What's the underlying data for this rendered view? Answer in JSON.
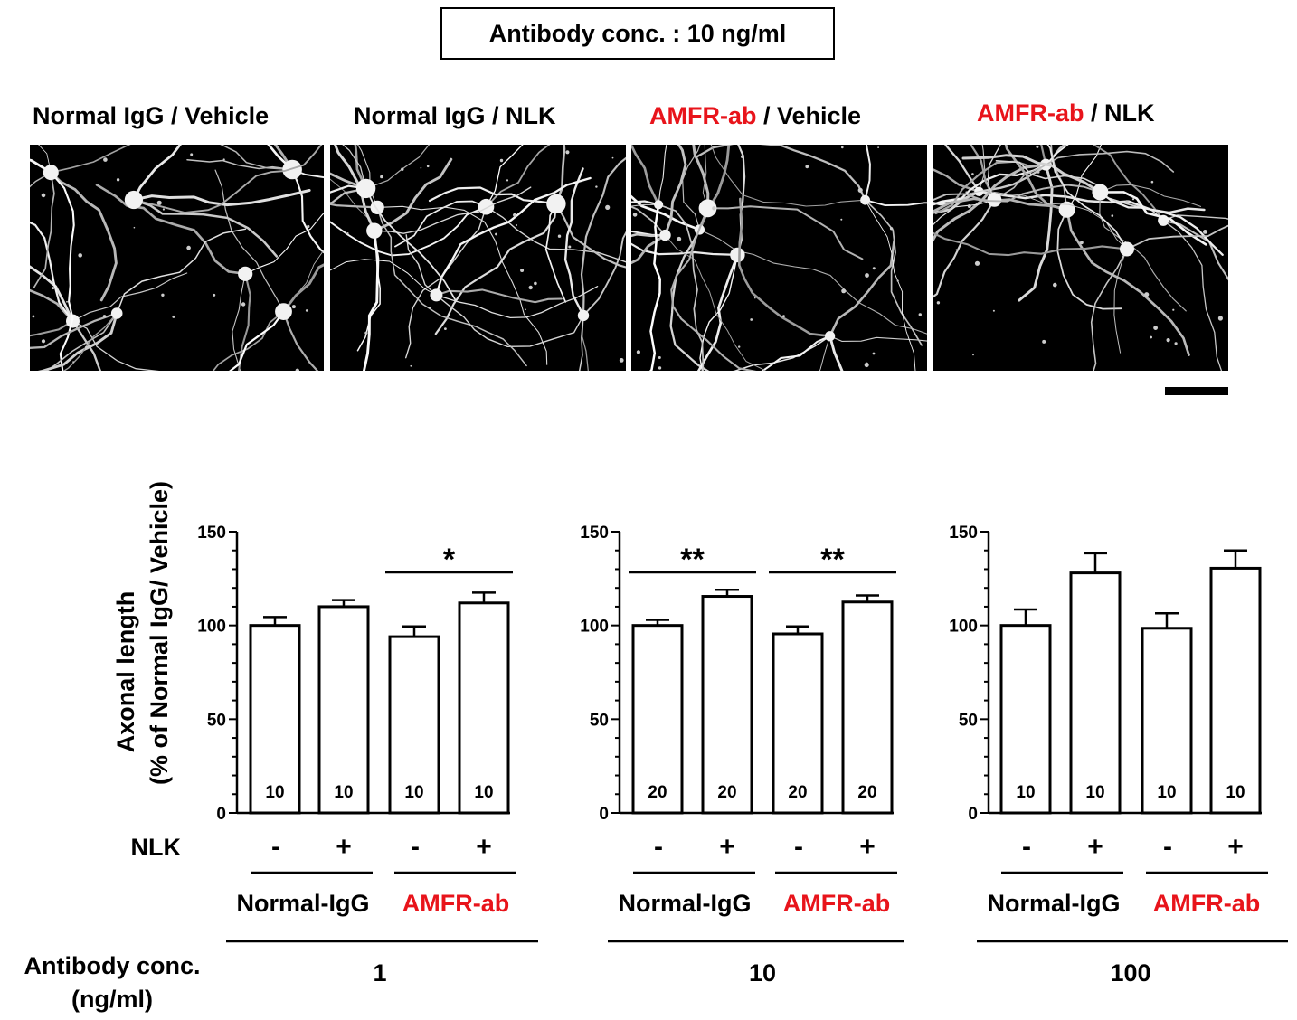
{
  "figure": {
    "header_box": "Antibody conc. : 10 ng/ml",
    "panels": [
      {
        "parts": [
          {
            "text": "Normal IgG",
            "color": "#000000"
          },
          {
            "text": " / Vehicle",
            "color": "#000000"
          }
        ]
      },
      {
        "parts": [
          {
            "text": "Normal IgG",
            "color": "#000000"
          },
          {
            "text": " / NLK",
            "color": "#000000"
          }
        ]
      },
      {
        "parts": [
          {
            "text": "AMFR-ab",
            "color": "#e8141b"
          },
          {
            "text": " / Vehicle",
            "color": "#000000"
          }
        ]
      },
      {
        "parts": [
          {
            "text": "AMFR-ab",
            "color": "#e8141b"
          },
          {
            "text": " / NLK",
            "color": "#000000"
          }
        ]
      }
    ]
  },
  "chart_data": {
    "type": "bar",
    "ylabel_line1": "Axonal length",
    "ylabel_line2": "(% of Normal IgG/ Vehicle)",
    "ylim": [
      0,
      150
    ],
    "yticks": [
      0,
      50,
      100,
      150
    ],
    "row_label_nlk": "NLK",
    "row_label_conc": [
      "Antibody conc.",
      "(ng/ml)"
    ],
    "accent_color": "#e8141b",
    "groups": [
      {
        "concentration": "1",
        "bars": [
          {
            "nlk": "-",
            "antibody": "Normal-IgG",
            "value": 100,
            "error": 4.5,
            "n": "10"
          },
          {
            "nlk": "+",
            "antibody": "Normal-IgG",
            "value": 110,
            "error": 3.5,
            "n": "10"
          },
          {
            "nlk": "-",
            "antibody": "AMFR-ab",
            "value": 94,
            "error": 5.5,
            "n": "10"
          },
          {
            "nlk": "+",
            "antibody": "AMFR-ab",
            "value": 112,
            "error": 5.5,
            "n": "10"
          }
        ],
        "significance": [
          {
            "from": 2,
            "to": 3,
            "label": "*"
          }
        ]
      },
      {
        "concentration": "10",
        "bars": [
          {
            "nlk": "-",
            "antibody": "Normal-IgG",
            "value": 100,
            "error": 3,
            "n": "20"
          },
          {
            "nlk": "+",
            "antibody": "Normal-IgG",
            "value": 115.5,
            "error": 3.5,
            "n": "20"
          },
          {
            "nlk": "-",
            "antibody": "AMFR-ab",
            "value": 95.5,
            "error": 4,
            "n": "20"
          },
          {
            "nlk": "+",
            "antibody": "AMFR-ab",
            "value": 112.5,
            "error": 3.5,
            "n": "20"
          }
        ],
        "significance": [
          {
            "from": 0,
            "to": 1,
            "label": "**"
          },
          {
            "from": 2,
            "to": 3,
            "label": "**"
          }
        ]
      },
      {
        "concentration": "100",
        "bars": [
          {
            "nlk": "-",
            "antibody": "Normal-IgG",
            "value": 100,
            "error": 8.5,
            "n": "10"
          },
          {
            "nlk": "+",
            "antibody": "Normal-IgG",
            "value": 128,
            "error": 10.5,
            "n": "10"
          },
          {
            "nlk": "-",
            "antibody": "AMFR-ab",
            "value": 98.5,
            "error": 8,
            "n": "10"
          },
          {
            "nlk": "+",
            "antibody": "AMFR-ab",
            "value": 130.5,
            "error": 9.5,
            "n": "10"
          }
        ],
        "significance": []
      }
    ],
    "antibody_labels": [
      "Normal-IgG",
      "AMFR-ab"
    ]
  }
}
